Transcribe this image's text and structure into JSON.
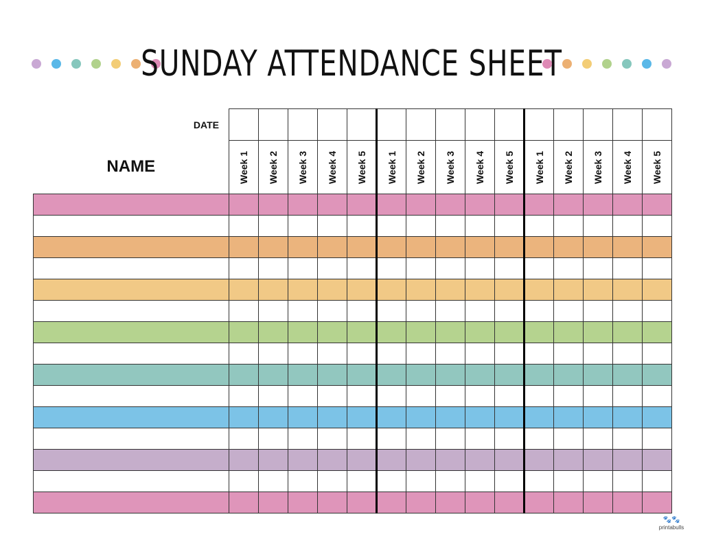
{
  "title": "SUNDAY ATTENDANCE SHEET",
  "header": {
    "date_label": "DATE",
    "name_label": "NAME"
  },
  "dots_left": [
    "#c9a8d4",
    "#5ab8e8",
    "#86c7bd",
    "#b1d28c",
    "#f3cd76",
    "#ecb073",
    "#de8ab5"
  ],
  "dots_right": [
    "#de8ab5",
    "#ecb073",
    "#f3cd76",
    "#b1d28c",
    "#86c7bd",
    "#5ab8e8",
    "#c9a8d4"
  ],
  "groups": [
    {
      "weeks": [
        "Week 1",
        "Week 2",
        "Week 3",
        "Week 4",
        "Week 5"
      ]
    },
    {
      "weeks": [
        "Week 1",
        "Week 2",
        "Week 3",
        "Week 4",
        "Week 5"
      ]
    },
    {
      "weeks": [
        "Week 1",
        "Week 2",
        "Week 3",
        "Week 4",
        "Week 5"
      ]
    }
  ],
  "row_colors": [
    "#df95ba",
    "#ffffff",
    "#ebb47d",
    "#ffffff",
    "#f1c986",
    "#ffffff",
    "#b5d38f",
    "#ffffff",
    "#92c7bf",
    "#ffffff",
    "#7cc3e7",
    "#ffffff",
    "#c5aecb",
    "#ffffff",
    "#df95ba"
  ],
  "brand": {
    "mark": "🐾🐾",
    "text": "printabulls"
  }
}
